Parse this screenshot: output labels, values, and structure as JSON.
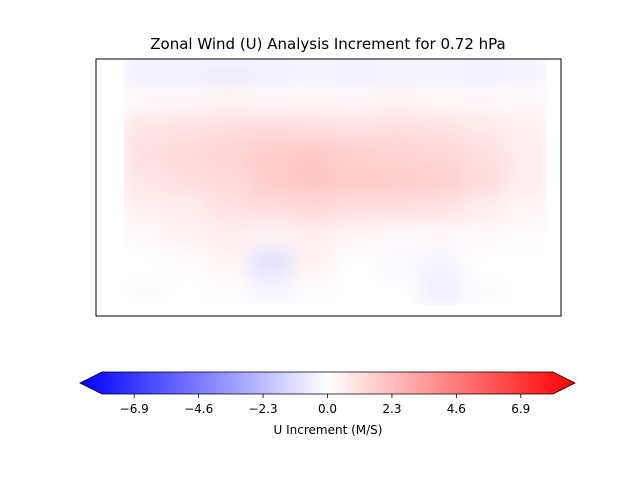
{
  "chart_data": {
    "type": "heatmap",
    "title": "Zonal Wind (U) Analysis Increment for 0.72 hPa",
    "colormap": "bwr",
    "colorbar": {
      "label": "U Increment (M/S)",
      "range": [
        -8.05,
        8.05
      ],
      "extend": "both",
      "orientation": "horizontal",
      "ticks": [
        -6.9,
        -4.6,
        -2.3,
        0.0,
        2.3,
        4.6,
        6.9
      ],
      "tick_labels": [
        "−6.9",
        "−4.6",
        "−2.3",
        "0.0",
        "2.3",
        "4.6",
        "6.9"
      ]
    },
    "axes_ticks": false,
    "field_approx": {
      "note_rows_top_to_bottom": true,
      "rows": [
        [
          -0.5,
          -0.5,
          -0.6,
          -0.5,
          -0.4,
          -0.5,
          -0.4,
          -0.4,
          -0.5,
          -0.4
        ],
        [
          0.2,
          0.2,
          0.3,
          0.2,
          0.2,
          0.2,
          0.3,
          0.2,
          0.2,
          0.2
        ],
        [
          0.8,
          0.9,
          1.0,
          1.1,
          1.0,
          0.9,
          1.0,
          0.9,
          0.7,
          0.5
        ],
        [
          1.0,
          1.2,
          1.4,
          1.6,
          1.7,
          1.5,
          1.4,
          1.3,
          1.0,
          0.6
        ],
        [
          0.8,
          1.0,
          1.2,
          1.6,
          1.8,
          1.6,
          1.6,
          1.5,
          1.1,
          0.6
        ],
        [
          0.5,
          0.6,
          0.9,
          1.1,
          1.2,
          1.0,
          1.0,
          0.9,
          0.6,
          0.3
        ],
        [
          0.2,
          0.4,
          0.6,
          0.3,
          0.5,
          0.3,
          0.2,
          0.2,
          0.2,
          0.1
        ],
        [
          0.0,
          0.1,
          0.3,
          -0.9,
          0.4,
          0.0,
          -0.2,
          -0.3,
          0.0,
          0.0
        ],
        [
          -0.1,
          0.0,
          0.1,
          -0.3,
          0.1,
          0.0,
          0.0,
          -0.5,
          -0.1,
          0.0
        ]
      ]
    }
  }
}
